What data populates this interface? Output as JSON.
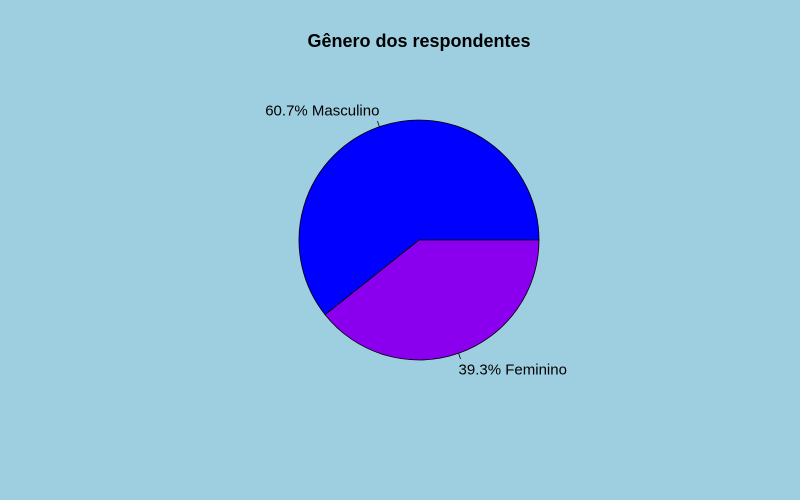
{
  "chart_data": {
    "type": "pie",
    "title": "Gênero dos respondentes",
    "background_color": "#9ecfe0",
    "start_angle_deg": 0,
    "direction": "counterclockwise",
    "slices": [
      {
        "label": "Masculino",
        "percent": 60.7,
        "display": "60.7% Masculino",
        "color": "#0000ff"
      },
      {
        "label": "Feminino",
        "percent": 39.3,
        "display": "39.3% Feminino",
        "color": "#8a00ee"
      }
    ]
  }
}
